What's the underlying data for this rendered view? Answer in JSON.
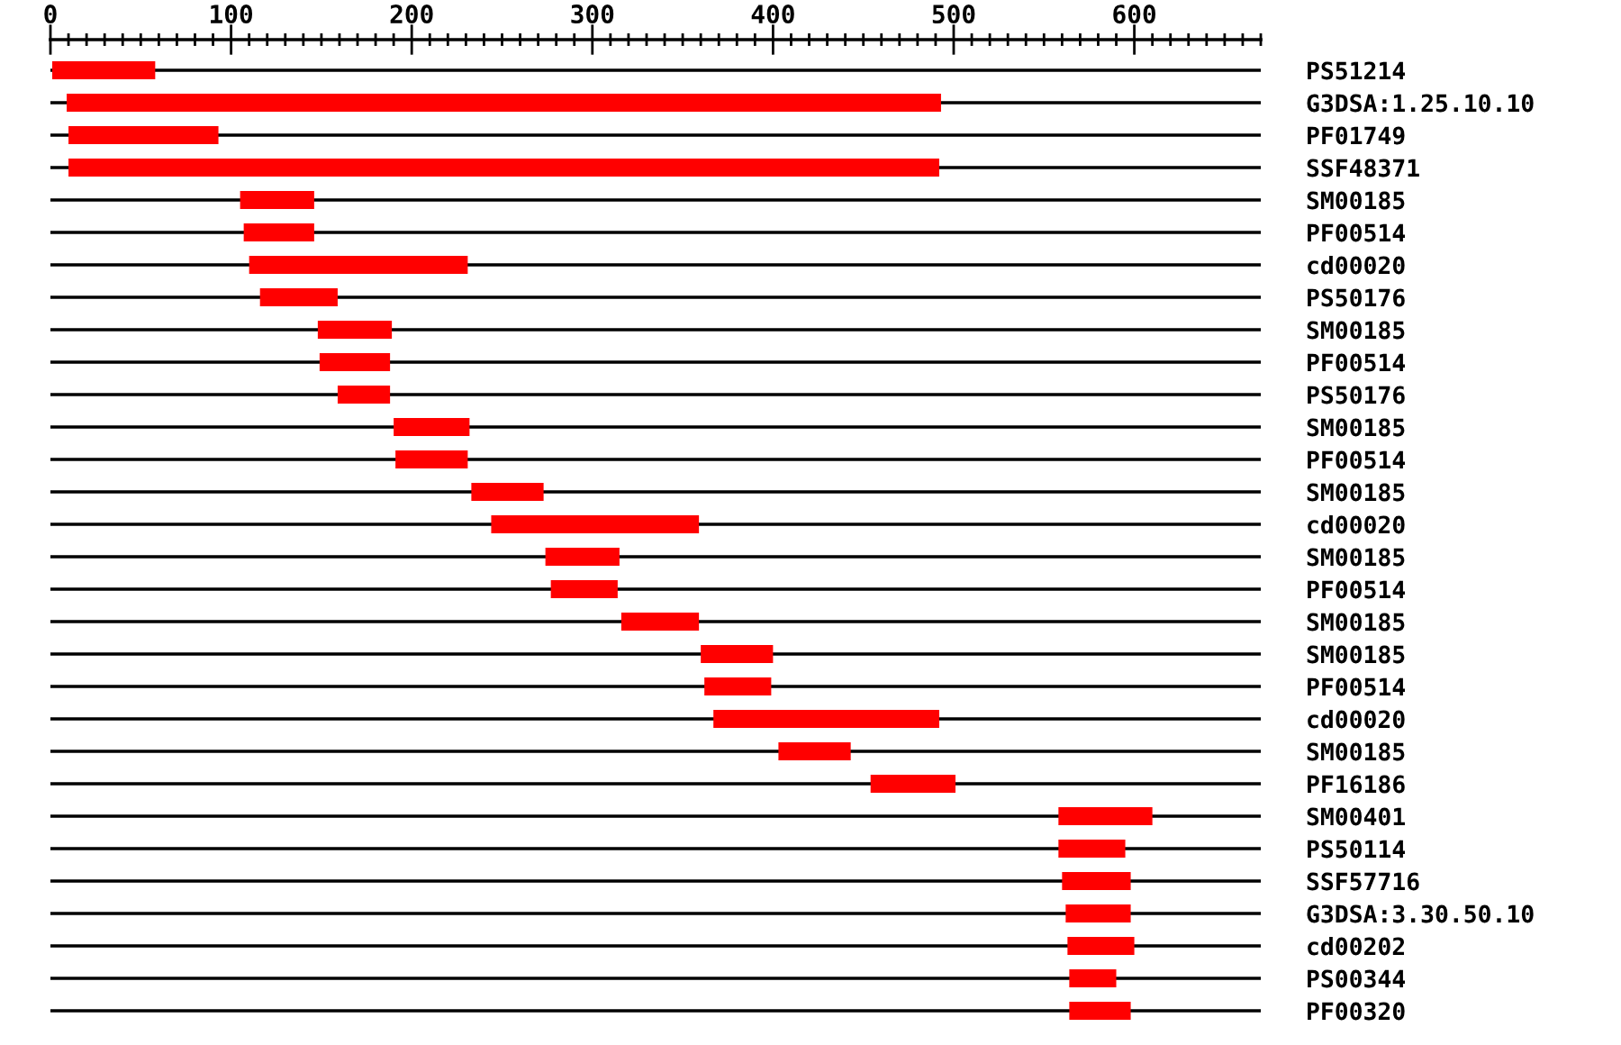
{
  "chart_data": {
    "type": "bar",
    "orientation": "horizontal",
    "categories": [
      "PS51214",
      "G3DSA:1.25.10.10",
      "PF01749",
      "SSF48371",
      "SM00185",
      "PF00514",
      "cd00020",
      "PS50176",
      "SM00185",
      "PF00514",
      "PS50176",
      "SM00185",
      "PF00514",
      "SM00185",
      "cd00020",
      "SM00185",
      "PF00514",
      "SM00185",
      "SM00185",
      "PF00514",
      "cd00020",
      "SM00185",
      "PF16186",
      "SM00401",
      "PS50114",
      "SSF57716",
      "G3DSA:3.30.50.10",
      "cd00202",
      "PS00344",
      "PF00320"
    ],
    "base": [
      1,
      9,
      10,
      10,
      105,
      107,
      110,
      116,
      148,
      149,
      159,
      190,
      191,
      233,
      244,
      274,
      277,
      316,
      360,
      362,
      367,
      403,
      454,
      558,
      558,
      560,
      562,
      563,
      564,
      564
    ],
    "values": [
      57,
      484,
      83,
      482,
      41,
      39,
      121,
      43,
      41,
      39,
      29,
      42,
      40,
      40,
      115,
      41,
      37,
      43,
      40,
      37,
      125,
      40,
      47,
      52,
      37,
      38,
      36,
      37,
      26,
      34
    ],
    "color": "#ff0000",
    "xlim": [
      0,
      670
    ],
    "xticks": [
      0,
      {
        "value": 10,
        "label": null
      },
      {
        "value": 20,
        "label": null
      },
      {
        "value": 30,
        "label": null
      },
      {
        "value": 40,
        "label": null
      },
      {
        "value": 50,
        "label": null
      },
      {
        "value": 60,
        "label": null
      },
      {
        "value": 70,
        "label": null
      },
      {
        "value": 80,
        "label": null
      },
      {
        "value": 90,
        "label": null
      },
      100,
      {
        "value": 110,
        "label": null
      },
      {
        "value": 120,
        "label": null
      },
      {
        "value": 130,
        "label": null
      },
      {
        "value": 140,
        "label": null
      },
      {
        "value": 150,
        "label": null
      },
      {
        "value": 160,
        "label": null
      },
      {
        "value": 170,
        "label": null
      },
      {
        "value": 180,
        "label": null
      },
      {
        "value": 190,
        "label": null
      },
      200,
      {
        "value": 210,
        "label": null
      },
      {
        "value": 220,
        "label": null
      },
      {
        "value": 230,
        "label": null
      },
      {
        "value": 240,
        "label": null
      },
      {
        "value": 250,
        "label": null
      },
      {
        "value": 260,
        "label": null
      },
      {
        "value": 270,
        "label": null
      },
      {
        "value": 280,
        "label": null
      },
      {
        "value": 290,
        "label": null
      },
      300,
      {
        "value": 310,
        "label": null
      },
      {
        "value": 320,
        "label": null
      },
      {
        "value": 330,
        "label": null
      },
      {
        "value": 340,
        "label": null
      },
      {
        "value": 350,
        "label": null
      },
      {
        "value": 360,
        "label": null
      },
      {
        "value": 370,
        "label": null
      },
      {
        "value": 380,
        "label": null
      },
      {
        "value": 390,
        "label": null
      },
      400,
      {
        "value": 410,
        "label": null
      },
      {
        "value": 420,
        "label": null
      },
      {
        "value": 430,
        "label": null
      },
      {
        "value": 440,
        "label": null
      },
      {
        "value": 450,
        "label": null
      },
      {
        "value": 460,
        "label": null
      },
      {
        "value": 470,
        "label": null
      },
      {
        "value": 480,
        "label": null
      },
      {
        "value": 490,
        "label": null
      },
      500,
      {
        "value": 510,
        "label": null
      },
      {
        "value": 520,
        "label": null
      },
      {
        "value": 530,
        "label": null
      },
      {
        "value": 540,
        "label": null
      },
      {
        "value": 550,
        "label": null
      },
      {
        "value": 560,
        "label": null
      },
      {
        "value": 570,
        "label": null
      },
      {
        "value": 580,
        "label": null
      },
      {
        "value": 590,
        "label": null
      },
      600,
      {
        "value": 610,
        "label": null
      },
      {
        "value": 620,
        "label": null
      },
      {
        "value": 630,
        "label": null
      },
      {
        "value": 640,
        "label": null
      },
      {
        "value": 650,
        "label": null
      },
      {
        "value": 660,
        "label": null
      },
      {
        "value": 670,
        "label": null
      }
    ],
    "grid": "y"
  }
}
